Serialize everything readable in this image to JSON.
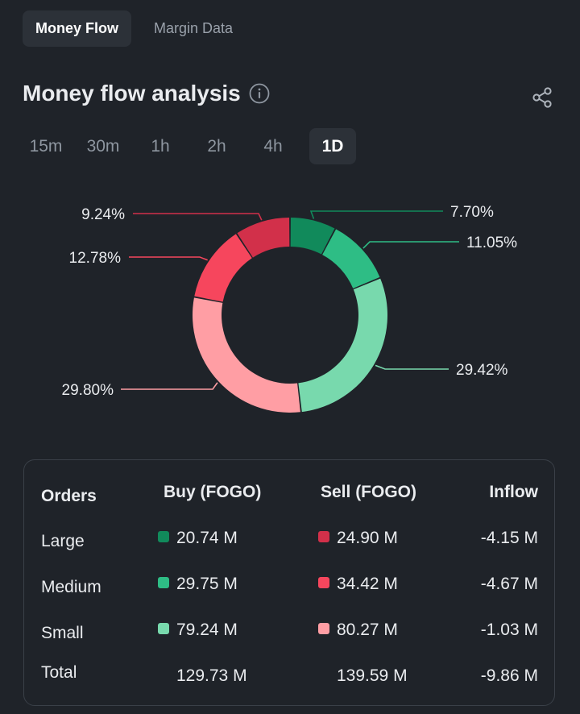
{
  "top_tabs": [
    {
      "label": "Money Flow",
      "active": true
    },
    {
      "label": "Margin Data",
      "active": false
    }
  ],
  "analysis": {
    "title": "Money flow analysis"
  },
  "ranges": [
    {
      "label": "15m",
      "active": false
    },
    {
      "label": "30m",
      "active": false
    },
    {
      "label": "1h",
      "active": false
    },
    {
      "label": "2h",
      "active": false
    },
    {
      "label": "4h",
      "active": false
    },
    {
      "label": "1D",
      "active": true
    }
  ],
  "chart_data": {
    "type": "pie",
    "variant": "donut",
    "slices": [
      {
        "name": "Buy Large",
        "value": 7.7,
        "label": "7.70%",
        "color": "#118a5b"
      },
      {
        "name": "Buy Medium",
        "value": 11.05,
        "label": "11.05%",
        "color": "#2ebd85"
      },
      {
        "name": "Buy Small",
        "value": 29.42,
        "label": "29.42%",
        "color": "#78d9ad"
      },
      {
        "name": "Sell Small",
        "value": 29.8,
        "label": "29.80%",
        "color": "#ff9ea4"
      },
      {
        "name": "Sell Medium",
        "value": 12.78,
        "label": "12.78%",
        "color": "#f6465d"
      },
      {
        "name": "Sell Large",
        "value": 9.24,
        "label": "9.24%",
        "color": "#d2304a"
      }
    ]
  },
  "table": {
    "headers": {
      "orders": "Orders",
      "buy": "Buy (FOGO)",
      "sell": "Sell (FOGO)",
      "inflow": "Inflow"
    },
    "rows": [
      {
        "orders": "Large",
        "buy": "20.74 M",
        "sell": "24.90 M",
        "inflow": "-4.15 M",
        "buy_color": "#118a5b",
        "sell_color": "#d2304a"
      },
      {
        "orders": "Medium",
        "buy": "29.75 M",
        "sell": "34.42 M",
        "inflow": "-4.67 M",
        "buy_color": "#2ebd85",
        "sell_color": "#f6465d"
      },
      {
        "orders": "Small",
        "buy": "79.24 M",
        "sell": "80.27 M",
        "inflow": "-1.03 M",
        "buy_color": "#78d9ad",
        "sell_color": "#ff9ea4"
      }
    ],
    "total": {
      "orders": "Total",
      "buy": "129.73 M",
      "sell": "139.59 M",
      "inflow": "-9.86 M"
    }
  },
  "icons": {
    "info": "info-icon",
    "share": "share-icon"
  },
  "colors": {
    "background": "#1f2329",
    "active_tab": "#2c3138",
    "text": "#eaecef",
    "muted": "#8e96a0"
  }
}
